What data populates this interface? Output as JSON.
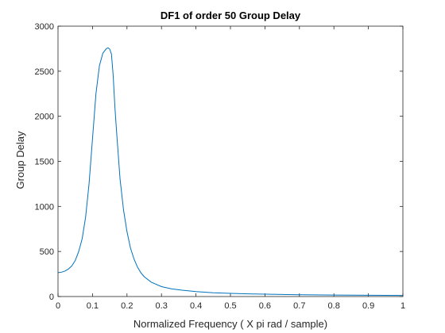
{
  "chart_data": {
    "type": "line",
    "title": "DF1 of order 50 Group Delay",
    "xlabel": "Normalized Frequency ( X pi rad / sample)",
    "ylabel": "Group Delay",
    "xlim": [
      0,
      1
    ],
    "ylim": [
      0,
      3000
    ],
    "xticks": [
      0,
      0.1,
      0.2,
      0.3,
      0.4,
      0.5,
      0.6,
      0.7,
      0.8,
      0.9,
      1
    ],
    "xtick_labels": [
      "0",
      "0.1",
      "0.2",
      "0.3",
      "0.4",
      "0.5",
      "0.6",
      "0.7",
      "0.8",
      "0.9",
      "1"
    ],
    "yticks": [
      0,
      500,
      1000,
      1500,
      2000,
      2500,
      3000
    ],
    "ytick_labels": [
      "0",
      "500",
      "1000",
      "1500",
      "2000",
      "2500",
      "3000"
    ],
    "grid": false,
    "box": true,
    "series": [
      {
        "color": "#0072bd",
        "x": [
          0,
          0.01,
          0.02,
          0.03,
          0.04,
          0.05,
          0.06,
          0.07,
          0.08,
          0.09,
          0.1,
          0.11,
          0.12,
          0.13,
          0.14,
          0.145,
          0.15,
          0.155,
          0.16,
          0.165,
          0.17,
          0.18,
          0.19,
          0.2,
          0.21,
          0.22,
          0.23,
          0.24,
          0.25,
          0.27,
          0.3,
          0.33,
          0.36,
          0.4,
          0.45,
          0.5,
          0.55,
          0.6,
          0.7,
          0.8,
          0.9,
          1.0
        ],
        "y": [
          265,
          270,
          282,
          305,
          340,
          400,
          500,
          640,
          880,
          1250,
          1750,
          2250,
          2560,
          2700,
          2750,
          2760,
          2745,
          2690,
          2450,
          2100,
          1820,
          1300,
          960,
          720,
          540,
          420,
          330,
          265,
          220,
          160,
          110,
          85,
          70,
          55,
          42,
          35,
          30,
          26,
          20,
          16,
          14,
          12
        ]
      }
    ]
  }
}
